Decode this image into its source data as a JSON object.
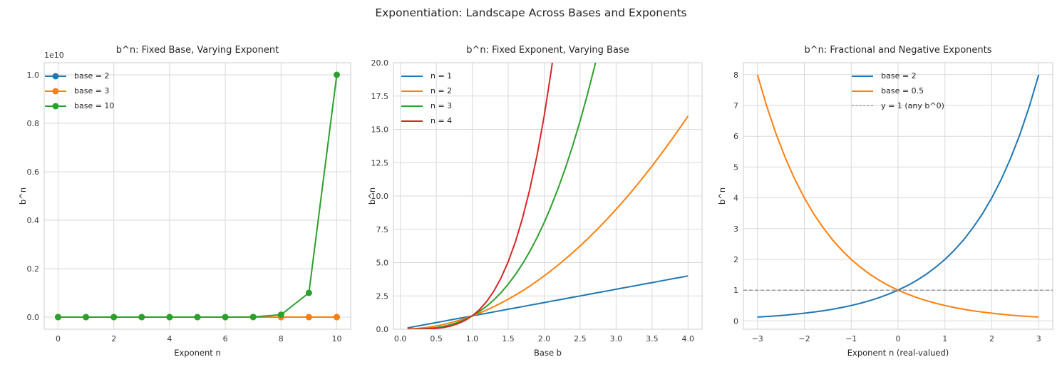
{
  "suptitle": "Exponentiation: Landscape Across Bases and Exponents",
  "colors": {
    "blue": "#1f77b4",
    "orange": "#ff7f0e",
    "green": "#2ca02c",
    "red": "#d62728",
    "gray": "#7f7f7f",
    "grid": "#d9d9d9",
    "spine": "#cccccc",
    "tick_text": "#3a3a3a",
    "title_text": "#262626"
  },
  "chart_data": [
    {
      "type": "line",
      "title": "b^n: Fixed Base, Varying Exponent",
      "xlabel": "Exponent n",
      "ylabel": "b^n",
      "offset_text": "1e10",
      "xlim": [
        -0.5,
        10.5
      ],
      "ylim": [
        -500000000,
        10500000000
      ],
      "grid": true,
      "legend": {
        "loc": "upper-left"
      },
      "xticks": {
        "values": [
          0,
          2,
          4,
          6,
          8,
          10
        ],
        "labels": [
          "0",
          "2",
          "4",
          "6",
          "8",
          "10"
        ]
      },
      "yticks": {
        "values": [
          0,
          2000000000,
          4000000000,
          6000000000,
          8000000000,
          10000000000
        ],
        "labels": [
          "0.0",
          "0.2",
          "0.4",
          "0.6",
          "0.8",
          "1.0"
        ]
      },
      "x": [
        0,
        1,
        2,
        3,
        4,
        5,
        6,
        7,
        8,
        9,
        10
      ],
      "series": [
        {
          "name": "base = 2",
          "color": "#1f77b4",
          "marker": true,
          "values": [
            1,
            2,
            4,
            8,
            16,
            32,
            64,
            128,
            256,
            512,
            1024
          ]
        },
        {
          "name": "base = 3",
          "color": "#ff7f0e",
          "marker": true,
          "values": [
            1,
            3,
            9,
            27,
            81,
            243,
            729,
            2187,
            6561,
            19683,
            59049
          ]
        },
        {
          "name": "base = 10",
          "color": "#2ca02c",
          "marker": true,
          "values": [
            1,
            10,
            100,
            1000,
            10000,
            100000,
            1000000,
            10000000,
            100000000,
            1000000000,
            10000000000
          ]
        }
      ]
    },
    {
      "type": "line",
      "title": "b^n: Fixed Exponent, Varying Base",
      "xlabel": "Base b",
      "ylabel": "b^n",
      "xlim": [
        -0.095,
        4.195
      ],
      "ylim": [
        0,
        20
      ],
      "grid": true,
      "legend": {
        "loc": "upper-left"
      },
      "xticks": {
        "values": [
          0,
          0.5,
          1,
          1.5,
          2,
          2.5,
          3,
          3.5,
          4
        ],
        "labels": [
          "0.0",
          "0.5",
          "1.0",
          "1.5",
          "2.0",
          "2.5",
          "3.0",
          "3.5",
          "4.0"
        ]
      },
      "yticks": {
        "values": [
          0,
          2.5,
          5,
          7.5,
          10,
          12.5,
          15,
          17.5,
          20
        ],
        "labels": [
          "0.0",
          "2.5",
          "5.0",
          "7.5",
          "10.0",
          "12.5",
          "15.0",
          "17.5",
          "20.0"
        ]
      },
      "x": [
        0.1,
        0.2,
        0.3,
        0.4,
        0.5,
        0.6,
        0.7,
        0.8,
        0.9,
        1.0,
        1.1,
        1.2,
        1.3,
        1.4,
        1.5,
        1.6,
        1.7,
        1.8,
        1.9,
        2.0,
        2.1,
        2.2,
        2.3,
        2.4,
        2.5,
        2.6,
        2.7,
        2.8,
        2.9,
        3.0,
        3.1,
        3.2,
        3.3,
        3.4,
        3.5,
        3.6,
        3.7,
        3.8,
        3.9,
        4.0
      ],
      "series": [
        {
          "name": "n = 1",
          "color": "#1f77b4",
          "values": [
            0.1,
            0.2,
            0.3,
            0.4,
            0.5,
            0.6,
            0.7,
            0.8,
            0.9,
            1.0,
            1.1,
            1.2,
            1.3,
            1.4,
            1.5,
            1.6,
            1.7,
            1.8,
            1.9,
            2.0,
            2.1,
            2.2,
            2.3,
            2.4,
            2.5,
            2.6,
            2.7,
            2.8,
            2.9,
            3.0,
            3.1,
            3.2,
            3.3,
            3.4,
            3.5,
            3.6,
            3.7,
            3.8,
            3.9,
            4.0
          ]
        },
        {
          "name": "n = 2",
          "color": "#ff7f0e",
          "values": [
            0.01,
            0.04,
            0.09,
            0.16,
            0.25,
            0.36,
            0.49,
            0.64,
            0.81,
            1.0,
            1.21,
            1.44,
            1.69,
            1.96,
            2.25,
            2.56,
            2.89,
            3.24,
            3.61,
            4.0,
            4.41,
            4.84,
            5.29,
            5.76,
            6.25,
            6.76,
            7.29,
            7.84,
            8.41,
            9.0,
            9.61,
            10.24,
            10.89,
            11.56,
            12.25,
            12.96,
            13.69,
            14.44,
            15.21,
            16.0
          ]
        },
        {
          "name": "n = 3",
          "color": "#2ca02c",
          "values": [
            0.001,
            0.008,
            0.027,
            0.064,
            0.125,
            0.216,
            0.343,
            0.512,
            0.729,
            1.0,
            1.331,
            1.728,
            2.197,
            2.744,
            3.375,
            4.096,
            4.913,
            5.832,
            6.859,
            8.0,
            9.261,
            10.648,
            12.167,
            13.824,
            15.625,
            17.576,
            19.683,
            21.952
          ]
        },
        {
          "name": "n = 4",
          "color": "#d62728",
          "values": [
            0.0001,
            0.0016,
            0.0081,
            0.0256,
            0.0625,
            0.1296,
            0.2401,
            0.4096,
            0.6561,
            1.0,
            1.4641,
            2.0736,
            2.8561,
            3.8416,
            5.0625,
            6.5536,
            8.3521,
            10.4976,
            13.0321,
            16.0,
            19.4481,
            23.4256
          ]
        }
      ]
    },
    {
      "type": "line",
      "title": "b^n: Fractional and Negative Exponents",
      "xlabel": "Exponent n (real-valued)",
      "ylabel": "b^n",
      "xlim": [
        -3.3,
        3.3
      ],
      "ylim": [
        -0.27,
        8.39
      ],
      "grid": true,
      "legend": {
        "loc": "upper-center"
      },
      "xticks": {
        "values": [
          -3,
          -2,
          -1,
          0,
          1,
          2,
          3
        ],
        "labels": [
          "−3",
          "−2",
          "−1",
          "0",
          "1",
          "2",
          "3"
        ]
      },
      "yticks": {
        "values": [
          0,
          1,
          2,
          3,
          4,
          5,
          6,
          7,
          8
        ],
        "labels": [
          "0",
          "1",
          "2",
          "3",
          "4",
          "5",
          "6",
          "7",
          "8"
        ]
      },
      "x": [
        -3,
        -2.8,
        -2.6,
        -2.4,
        -2.2,
        -2,
        -1.8,
        -1.6,
        -1.4,
        -1.2,
        -1,
        -0.8,
        -0.6,
        -0.4,
        -0.2,
        0,
        0.2,
        0.4,
        0.6,
        0.8,
        1,
        1.2,
        1.4,
        1.6,
        1.8,
        2,
        2.2,
        2.4,
        2.6,
        2.8,
        3
      ],
      "series": [
        {
          "name": "base = 2",
          "color": "#1f77b4",
          "values": [
            0.125,
            0.1436,
            0.1649,
            0.1895,
            0.2176,
            0.25,
            0.2872,
            0.3299,
            0.3789,
            0.4353,
            0.5,
            0.5743,
            0.6598,
            0.7579,
            0.8706,
            1.0,
            1.1487,
            1.3195,
            1.5157,
            1.7411,
            2.0,
            2.2974,
            2.639,
            3.0314,
            3.4822,
            4.0,
            4.5948,
            5.278,
            6.0629,
            6.9644,
            8.0
          ]
        },
        {
          "name": "base = 0.5",
          "color": "#ff7f0e",
          "values": [
            8.0,
            6.9644,
            6.0629,
            5.278,
            4.5948,
            4.0,
            3.4822,
            3.0314,
            2.639,
            2.2974,
            2.0,
            1.7411,
            1.5157,
            1.3195,
            1.1487,
            1.0,
            0.8706,
            0.7579,
            0.6598,
            0.5743,
            0.5,
            0.4353,
            0.3789,
            0.3299,
            0.2872,
            0.25,
            0.2176,
            0.1895,
            0.1649,
            0.1436,
            0.125
          ]
        },
        {
          "name": "y = 1 (any b^0)",
          "color": "#7f7f7f",
          "dash": true,
          "hline": 1
        }
      ]
    }
  ]
}
